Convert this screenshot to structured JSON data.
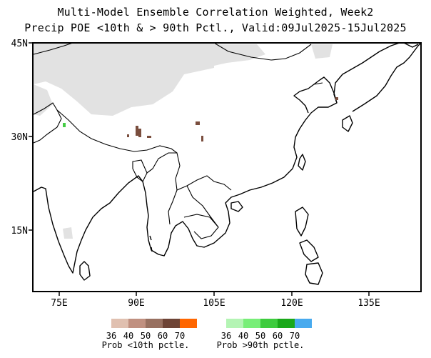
{
  "title_line1": "Multi-Model Ensemble Correlation Weighted, Week2",
  "title_line2": "Precip POE <10th & > 90th Pctl., Valid:09Jul2025-15Jul2025",
  "lat_labels": [
    "45N",
    "30N",
    "15N"
  ],
  "lon_labels": [
    "75E",
    "90E",
    "105E",
    "120E",
    "135E"
  ],
  "legend_dry": {
    "title": "Prob <10th pctle.",
    "ticks": [
      "36",
      "40",
      "50",
      "60",
      "70"
    ],
    "colors": [
      "#e0c0b0",
      "#c09080",
      "#987060",
      "#6e4436",
      "#ff6600"
    ]
  },
  "legend_wet": {
    "title": "Prob >90th pctle.",
    "ticks": [
      "36",
      "40",
      "50",
      "60",
      "70"
    ],
    "colors": [
      "#b4f4b4",
      "#78ee78",
      "#3ecc3e",
      "#1aa81a",
      "#48aaee"
    ]
  },
  "colors": {
    "no_data_shade": "#e2e2e2",
    "dry_dots": "#8a5a48",
    "wet_dots": "#44cc44",
    "coast": "#000000"
  }
}
